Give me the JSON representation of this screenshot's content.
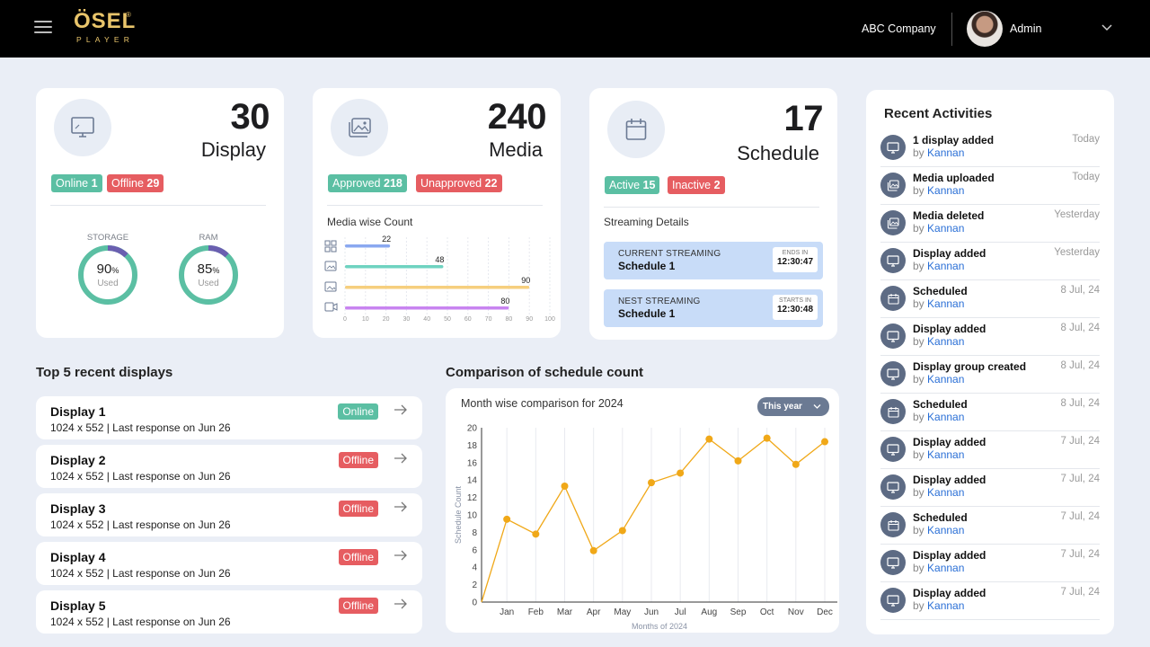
{
  "header": {
    "logo_main": "ÖSEL",
    "logo_sub": "PLAYER",
    "logo_reg": "®",
    "company": "ABC Company",
    "user": "Admin"
  },
  "display_card": {
    "count": "30",
    "label": "Display",
    "online_label": "Online",
    "online_count": "1",
    "offline_label": "Offline",
    "offline_count": "29",
    "storage_label": "STORAGE",
    "storage_value": "90",
    "storage_pct": 0.9,
    "ram_label": "RAM",
    "ram_value": "85",
    "ram_pct": 0.85,
    "pct_sign": "%",
    "used_label": "Used"
  },
  "media_card": {
    "count": "240",
    "label": "Media",
    "approved_label": "Approved",
    "approved_count": "218",
    "unapproved_label": "Unapproved",
    "unapproved_count": "22",
    "chart_title": "Media wise Count"
  },
  "schedule_card": {
    "count": "17",
    "label": "Schedule",
    "active_label": "Active",
    "active_count": "15",
    "inactive_label": "Inactive",
    "inactive_count": "2",
    "streaming_title": "Streaming Details",
    "current_label": "CURRENT STREAMING",
    "current_name": "Schedule 1",
    "ends_label": "ENDS IN",
    "ends_time": "12:30:47",
    "next_label": "NEST STREAMING",
    "next_name": "Schedule 1",
    "starts_label": "STARTS IN",
    "starts_time": "12:30:48"
  },
  "recent_displays": {
    "title": "Top 5 recent displays",
    "items": [
      {
        "name": "Display 1",
        "detail": "1024 x 552 | Last response on Jun 26",
        "status": "Online"
      },
      {
        "name": "Display 2",
        "detail": "1024 x 552 | Last response on Jun 26",
        "status": "Offline"
      },
      {
        "name": "Display 3",
        "detail": "1024 x 552 | Last response on Jun 26",
        "status": "Offline"
      },
      {
        "name": "Display 4",
        "detail": "1024 x 552 | Last response on Jun 26",
        "status": "Offline"
      },
      {
        "name": "Display 5",
        "detail": "1024 x 552 | Last response on Jun 26",
        "status": "Offline"
      }
    ]
  },
  "comparison": {
    "title": "Comparison of schedule count",
    "subtitle": "Month wise comparison for 2024",
    "filter": "This year"
  },
  "recent_activities": {
    "title": "Recent Activities",
    "by_label": "by",
    "items": [
      {
        "title": "1 display added",
        "user": "Kannan",
        "date": "Today",
        "icon": "display-icon"
      },
      {
        "title": "Media uploaded",
        "user": "Kannan",
        "date": "Today",
        "icon": "media-icon"
      },
      {
        "title": "Media deleted",
        "user": "Kannan",
        "date": "Yesterday",
        "icon": "media-icon"
      },
      {
        "title": "Display added",
        "user": "Kannan",
        "date": "Yesterday",
        "icon": "display-icon"
      },
      {
        "title": "Scheduled",
        "user": "Kannan",
        "date": "8 Jul, 24",
        "icon": "calendar-icon"
      },
      {
        "title": "Display added",
        "user": "Kannan",
        "date": "8 Jul, 24",
        "icon": "display-icon"
      },
      {
        "title": "Display group created",
        "user": "Kannan",
        "date": "8 Jul, 24",
        "icon": "display-icon"
      },
      {
        "title": "Scheduled",
        "user": "Kannan",
        "date": "8 Jul, 24",
        "icon": "calendar-icon"
      },
      {
        "title": "Display added",
        "user": "Kannan",
        "date": "7 Jul, 24",
        "icon": "display-icon"
      },
      {
        "title": "Display added",
        "user": "Kannan",
        "date": "7 Jul, 24",
        "icon": "display-icon"
      },
      {
        "title": "Scheduled",
        "user": "Kannan",
        "date": "7 Jul, 24",
        "icon": "calendar-icon"
      },
      {
        "title": "Display added",
        "user": "Kannan",
        "date": "7 Jul, 24",
        "icon": "display-icon"
      },
      {
        "title": "Display added",
        "user": "Kannan",
        "date": "7 Jul, 24",
        "icon": "display-icon"
      }
    ]
  },
  "colors": {
    "green": "#5bbfa3",
    "red": "#e65d61",
    "ring_track": "#5bbfa3",
    "ring_used": "#6a5fb0",
    "line": "#f0a818"
  },
  "chart_data": [
    {
      "type": "bar",
      "orientation": "horizontal",
      "title": "Media wise Count",
      "categories": [
        "image-grid-icon",
        "image-icon",
        "photo-icon",
        "video-icon"
      ],
      "values": [
        22,
        48,
        90,
        80
      ],
      "colors": [
        "#8aa8f0",
        "#6fd3c0",
        "#f6cf7e",
        "#c884f0"
      ],
      "xlim": [
        0,
        100
      ],
      "xticks": [
        0,
        10,
        20,
        30,
        40,
        50,
        60,
        70,
        80,
        90,
        100
      ]
    },
    {
      "type": "line",
      "title": "Month wise comparison for 2024",
      "categories": [
        "Jan",
        "Feb",
        "Mar",
        "Apr",
        "May",
        "Jun",
        "Jul",
        "Aug",
        "Sep",
        "Oct",
        "Nov",
        "Dec"
      ],
      "values": [
        9.5,
        7.8,
        13.3,
        5.9,
        8.2,
        13.7,
        14.8,
        18.7,
        16.2,
        18.8,
        15.8,
        18.4
      ],
      "start_value": 0,
      "xlabel": "Months of 2024",
      "ylabel": "Schedule Count",
      "ylim": [
        0,
        20
      ],
      "yticks": [
        0,
        2,
        4,
        6,
        8,
        10,
        12,
        14,
        16,
        18,
        20
      ],
      "grid": "vertical"
    }
  ]
}
